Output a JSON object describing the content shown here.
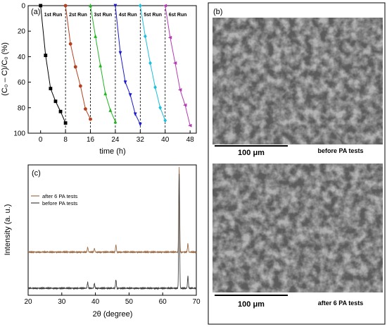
{
  "chart_data": [
    {
      "panel": "(a)",
      "type": "line",
      "xlabel": "time (h)",
      "ylabel": "(C₀ – C)/C₀ (%)",
      "xlim": [
        -4,
        50
      ],
      "ylim": [
        0,
        100
      ],
      "y_reversed": true,
      "xticks": [
        "0",
        "8",
        "16",
        "24",
        "32",
        "40",
        "48"
      ],
      "yticks": [
        "0",
        "20",
        "40",
        "60",
        "80",
        "100"
      ],
      "run_boundaries": [
        8,
        16,
        24,
        32,
        40
      ],
      "series": [
        {
          "name": "1st Run",
          "color": "#000000",
          "marker": "square",
          "x": [
            0,
            1.6,
            3.2,
            4.8,
            6.4,
            8
          ],
          "y": [
            0,
            39,
            65,
            75,
            83,
            92
          ]
        },
        {
          "name": "2st Run",
          "color": "#b5401f",
          "marker": "circle",
          "x": [
            8,
            9.6,
            11.2,
            12.8,
            14.4,
            16
          ],
          "y": [
            0,
            30,
            48,
            63,
            81,
            89
          ]
        },
        {
          "name": "3st Run",
          "color": "#22b522",
          "marker": "triangle-up",
          "x": [
            16,
            17.6,
            19.2,
            20.8,
            22.4,
            24
          ],
          "y": [
            0,
            24,
            47,
            69,
            82,
            91
          ]
        },
        {
          "name": "4st Run",
          "color": "#1a1acc",
          "marker": "triangle-down",
          "x": [
            24,
            25.6,
            27.2,
            28.8,
            30.4,
            32
          ],
          "y": [
            0,
            37,
            60,
            70,
            85,
            93
          ]
        },
        {
          "name": "5st Run",
          "color": "#1bbfdc",
          "marker": "diamond",
          "x": [
            32,
            33.6,
            35.2,
            36.8,
            38.4,
            40
          ],
          "y": [
            0,
            24,
            45,
            64,
            80,
            90
          ]
        },
        {
          "name": "6st Run",
          "color": "#b43ab4",
          "marker": "triangle-left",
          "x": [
            40,
            41.6,
            43.2,
            44.8,
            46.4,
            48
          ],
          "y": [
            0,
            25,
            45,
            66,
            78,
            94
          ]
        }
      ]
    },
    {
      "panel": "(c)",
      "type": "line",
      "xlabel": "2θ (degree)",
      "ylabel": "Intensity (a. u.)",
      "xlim": [
        20,
        70
      ],
      "xticks": [
        "20",
        "30",
        "40",
        "50",
        "60",
        "70"
      ],
      "series": [
        {
          "name": "after 6 PA tests",
          "color": "#a0704b",
          "offset": 0.3,
          "peaks": [
            [
              37.7,
              0.04
            ],
            [
              39.7,
              0.03
            ],
            [
              46.1,
              0.06
            ],
            [
              64.9,
              0.7
            ],
            [
              67.5,
              0.07
            ]
          ]
        },
        {
          "name": "before PA tests",
          "color": "#444444",
          "offset": 0.0,
          "peaks": [
            [
              37.7,
              0.05
            ],
            [
              39.7,
              0.04
            ],
            [
              46.1,
              0.07
            ],
            [
              64.9,
              0.95
            ],
            [
              67.5,
              0.1
            ]
          ]
        }
      ]
    }
  ],
  "panel_b": {
    "label": "(b)",
    "top": {
      "scale": "100 μm",
      "caption": "before PA tests"
    },
    "bottom": {
      "scale": "100 μm",
      "caption": "after 6 PA tests"
    }
  }
}
